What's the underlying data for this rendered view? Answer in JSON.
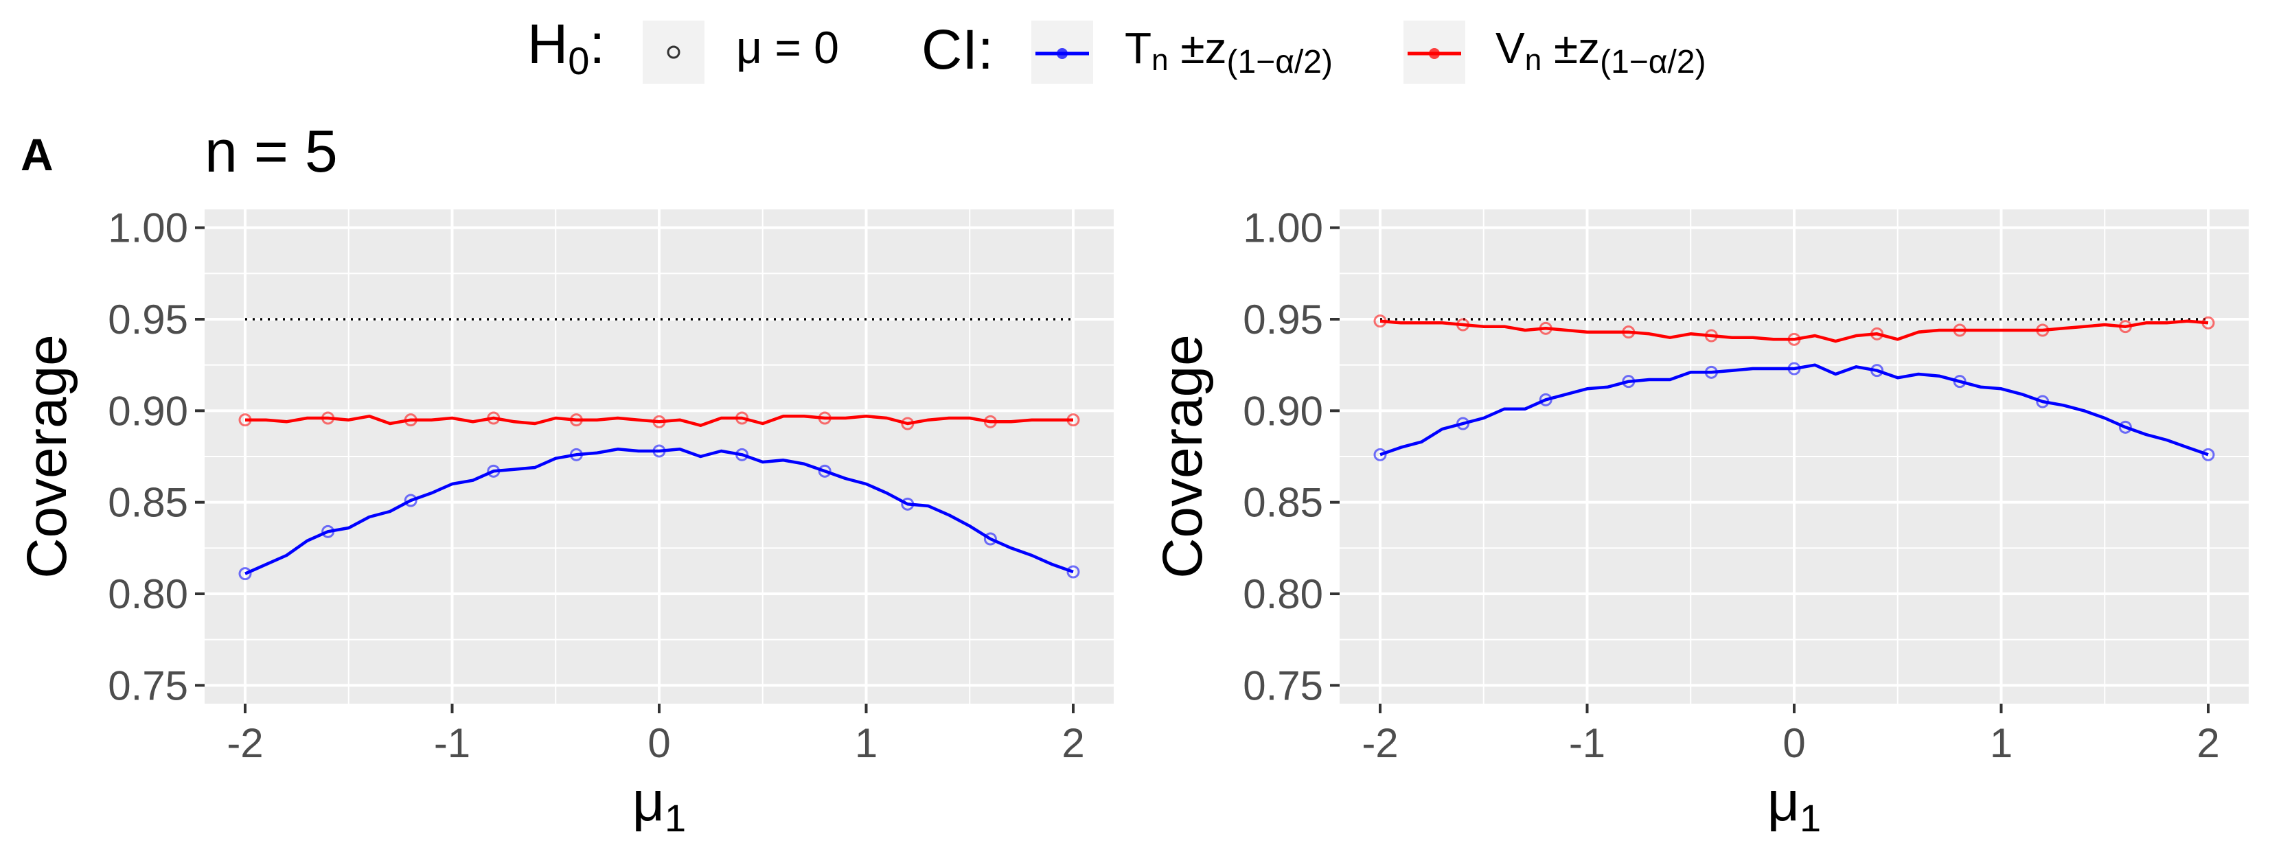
{
  "legend": {
    "h0_title": "H",
    "h0_title_sub": "0",
    "h0_colon": ":",
    "h0_label": "μ = 0",
    "ci_title": "CI:",
    "ci_items": [
      {
        "main": "T",
        "sub": "n",
        "rest": " ±z",
        "subscript": "(1−α/2)",
        "color": "#0000ff"
      },
      {
        "main": "V",
        "sub": "n",
        "rest": " ±z",
        "subscript": "(1−α/2)",
        "color": "#ff0000"
      }
    ]
  },
  "panel_tag": "A",
  "panel_title": "n = 5",
  "colors": {
    "panel_bg": "#ebebeb",
    "grid": "#ffffff",
    "blue": "#0000ff",
    "red": "#ff0000",
    "reference_line": "#000000",
    "axis_text": "#4d4d4d"
  },
  "chart_data": [
    {
      "type": "line",
      "title": "",
      "xlabel": "μ",
      "xlabel_sub": "1",
      "ylabel": "Coverage",
      "xlim": [
        -2,
        2
      ],
      "ylim": [
        0.75,
        1.0
      ],
      "x_ticks": [
        "-2",
        "-1",
        "0",
        "1",
        "2"
      ],
      "y_ticks": [
        "0.75",
        "0.80",
        "0.85",
        "0.90",
        "0.95",
        "1.00"
      ],
      "reference_line": 0.95,
      "grid": true,
      "x": [
        -2.0,
        -1.9,
        -1.8,
        -1.7,
        -1.6,
        -1.5,
        -1.4,
        -1.3,
        -1.2,
        -1.1,
        -1.0,
        -0.9,
        -0.8,
        -0.7,
        -0.6,
        -0.5,
        -0.4,
        -0.3,
        -0.2,
        -0.1,
        0.0,
        0.1,
        0.2,
        0.3,
        0.4,
        0.5,
        0.6,
        0.7,
        0.8,
        0.9,
        1.0,
        1.1,
        1.2,
        1.3,
        1.4,
        1.5,
        1.6,
        1.7,
        1.8,
        1.9,
        2.0
      ],
      "marker_x": [
        -2.0,
        -1.6,
        -1.2,
        -0.8,
        -0.4,
        0.0,
        0.4,
        0.8,
        1.2,
        1.6,
        2.0
      ],
      "series": [
        {
          "name": "Tn",
          "color": "#0000ff",
          "values": [
            0.811,
            0.816,
            0.821,
            0.829,
            0.834,
            0.836,
            0.842,
            0.845,
            0.851,
            0.855,
            0.86,
            0.862,
            0.867,
            0.868,
            0.869,
            0.874,
            0.876,
            0.877,
            0.879,
            0.878,
            0.878,
            0.879,
            0.875,
            0.878,
            0.876,
            0.872,
            0.873,
            0.871,
            0.867,
            0.863,
            0.86,
            0.855,
            0.849,
            0.848,
            0.843,
            0.837,
            0.83,
            0.825,
            0.821,
            0.816,
            0.812
          ]
        },
        {
          "name": "Vn",
          "color": "#ff0000",
          "values": [
            0.895,
            0.895,
            0.894,
            0.896,
            0.896,
            0.895,
            0.897,
            0.893,
            0.895,
            0.895,
            0.896,
            0.894,
            0.896,
            0.894,
            0.893,
            0.896,
            0.895,
            0.895,
            0.896,
            0.895,
            0.894,
            0.895,
            0.892,
            0.896,
            0.896,
            0.893,
            0.897,
            0.897,
            0.896,
            0.896,
            0.897,
            0.896,
            0.893,
            0.895,
            0.896,
            0.896,
            0.894,
            0.894,
            0.895,
            0.895,
            0.895
          ]
        }
      ]
    },
    {
      "type": "line",
      "title": "",
      "xlabel": "μ",
      "xlabel_sub": "1",
      "ylabel": "Coverage",
      "xlim": [
        -2,
        2
      ],
      "ylim": [
        0.75,
        1.0
      ],
      "x_ticks": [
        "-2",
        "-1",
        "0",
        "1",
        "2"
      ],
      "y_ticks": [
        "0.75",
        "0.80",
        "0.85",
        "0.90",
        "0.95",
        "1.00"
      ],
      "reference_line": 0.95,
      "grid": true,
      "x": [
        -2.0,
        -1.9,
        -1.8,
        -1.7,
        -1.6,
        -1.5,
        -1.4,
        -1.3,
        -1.2,
        -1.1,
        -1.0,
        -0.9,
        -0.8,
        -0.7,
        -0.6,
        -0.5,
        -0.4,
        -0.3,
        -0.2,
        -0.1,
        0.0,
        0.1,
        0.2,
        0.3,
        0.4,
        0.5,
        0.6,
        0.7,
        0.8,
        0.9,
        1.0,
        1.1,
        1.2,
        1.3,
        1.4,
        1.5,
        1.6,
        1.7,
        1.8,
        1.9,
        2.0
      ],
      "marker_x": [
        -2.0,
        -1.6,
        -1.2,
        -0.8,
        -0.4,
        0.0,
        0.4,
        0.8,
        1.2,
        1.6,
        2.0
      ],
      "series": [
        {
          "name": "Tn",
          "color": "#0000ff",
          "values": [
            0.876,
            0.88,
            0.883,
            0.89,
            0.893,
            0.896,
            0.901,
            0.901,
            0.906,
            0.909,
            0.912,
            0.913,
            0.916,
            0.917,
            0.917,
            0.921,
            0.921,
            0.922,
            0.923,
            0.923,
            0.923,
            0.925,
            0.92,
            0.924,
            0.922,
            0.918,
            0.92,
            0.919,
            0.916,
            0.913,
            0.912,
            0.909,
            0.905,
            0.903,
            0.9,
            0.896,
            0.891,
            0.887,
            0.884,
            0.88,
            0.876
          ]
        },
        {
          "name": "Vn",
          "color": "#ff0000",
          "values": [
            0.949,
            0.948,
            0.948,
            0.948,
            0.947,
            0.946,
            0.946,
            0.944,
            0.945,
            0.944,
            0.943,
            0.943,
            0.943,
            0.942,
            0.94,
            0.942,
            0.941,
            0.94,
            0.94,
            0.939,
            0.939,
            0.941,
            0.938,
            0.941,
            0.942,
            0.939,
            0.943,
            0.944,
            0.944,
            0.944,
            0.944,
            0.944,
            0.944,
            0.945,
            0.946,
            0.947,
            0.946,
            0.948,
            0.948,
            0.949,
            0.948
          ]
        }
      ]
    }
  ]
}
